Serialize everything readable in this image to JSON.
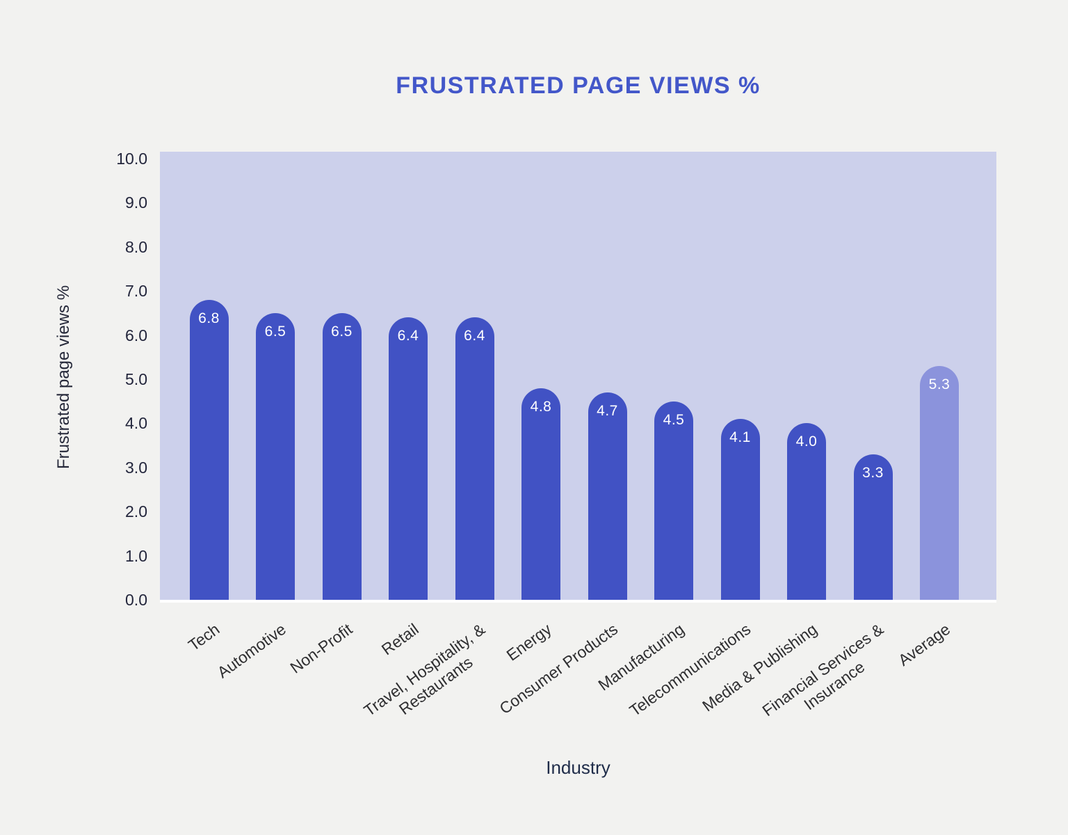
{
  "chart_data": {
    "type": "bar",
    "title": "FRUSTRATED PAGE VIEWS %",
    "xlabel": "Industry",
    "ylabel": "Frustrated page views %",
    "ylim": [
      0,
      10
    ],
    "ytick_labels": [
      "0.0",
      "1.0",
      "2.0",
      "3.0",
      "4.0",
      "5.0",
      "6.0",
      "7.0",
      "8.0",
      "9.0",
      "10.0"
    ],
    "grid": false,
    "legend": "none",
    "categories": [
      "Tech",
      "Automotive",
      "Non-Profit",
      "Retail",
      "Travel, Hospitality, &\nRestaurants",
      "Energy",
      "Consumer Products",
      "Manufacturing",
      "Telecommunications",
      "Media & Publishing",
      "Financial Services &\nInsurance",
      "Average"
    ],
    "values": [
      6.8,
      6.5,
      6.5,
      6.4,
      6.4,
      4.8,
      4.7,
      4.5,
      4.1,
      4.0,
      3.3,
      5.3
    ],
    "value_labels": [
      "6.8",
      "6.5",
      "6.5",
      "6.4",
      "6.4",
      "4.8",
      "4.7",
      "4.5",
      "4.1",
      "4.0",
      "3.3",
      "5.3"
    ],
    "highlight_index": 11,
    "colors": {
      "bar": "#4152C4",
      "highlight_bar": "#8B93DC",
      "plot_background": "#CCD0EB",
      "page_background": "#F2F2F0",
      "title": "#4357C9",
      "y_tick_text": "#23263C",
      "x_tick_text": "#2F2F31",
      "axis_title_text": "#26293A",
      "xlabel_text": "#1F2C49",
      "bar_label_text": "#FFFFFF",
      "baseline": "#FFFFFF"
    }
  }
}
